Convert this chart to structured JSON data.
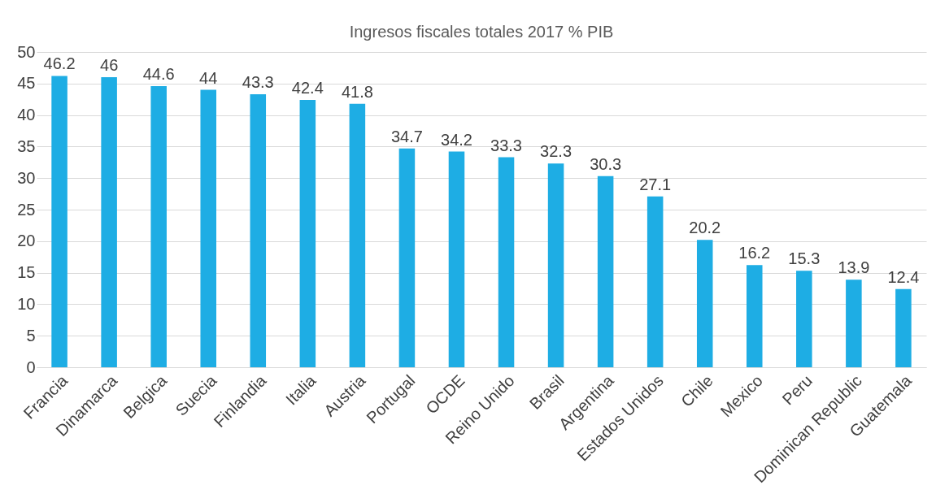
{
  "chart_data": {
    "type": "bar",
    "title": "Ingresos fiscales totales 2017 % PIB",
    "categories": [
      "Francia",
      "Dinamarca",
      "Belgica",
      "Suecia",
      "Finlandia",
      "Italia",
      "Austria",
      "Portugal",
      "OCDE",
      "Reino Unido",
      "Brasil",
      "Argentina",
      "Estados Unidos",
      "Chile",
      "Mexico",
      "Peru",
      "Dominican Republic",
      "Guatemala"
    ],
    "values": [
      46.2,
      46,
      44.6,
      44,
      43.3,
      42.4,
      41.8,
      34.7,
      34.2,
      33.3,
      32.3,
      30.3,
      27.1,
      20.2,
      16.2,
      15.3,
      13.9,
      12.4
    ],
    "color": "#1eade4",
    "ylim": [
      0,
      50
    ],
    "yticks": [
      0,
      5,
      10,
      15,
      20,
      25,
      30,
      35,
      40,
      45,
      50
    ],
    "grid": "y",
    "data_labels": true
  }
}
